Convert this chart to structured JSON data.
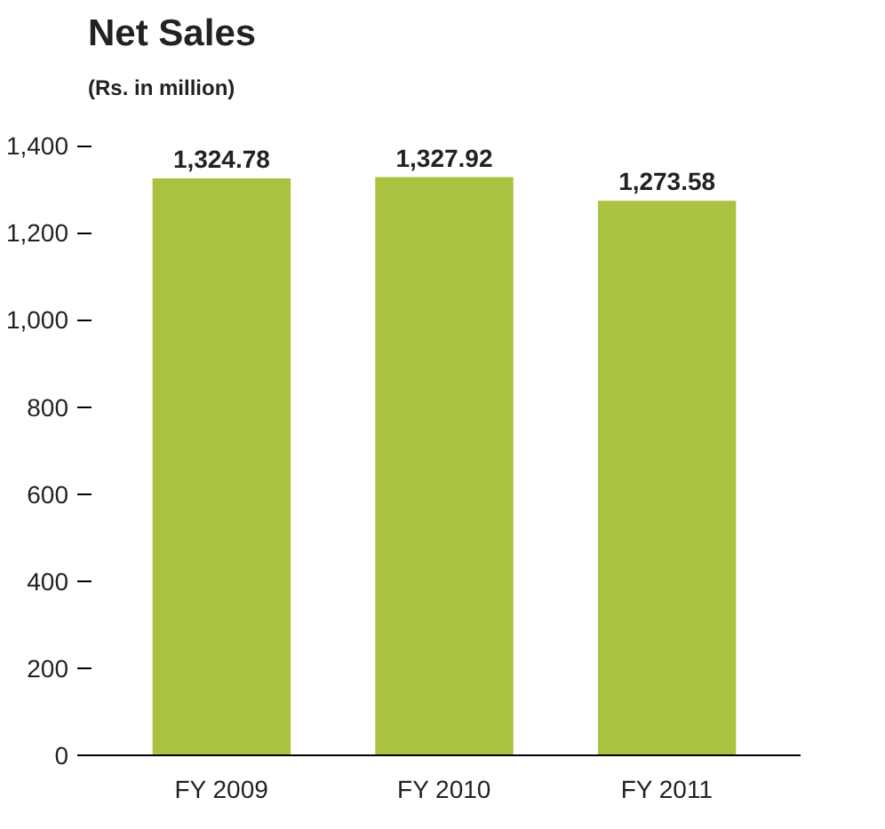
{
  "chart_data": {
    "type": "bar",
    "title": "Net Sales",
    "subtitle": "(Rs. in million)",
    "categories": [
      "FY 2009",
      "FY 2010",
      "FY 2011"
    ],
    "values": [
      1324.78,
      1327.92,
      1273.58
    ],
    "value_labels": [
      "1,324.78",
      "1,327.92",
      "1,273.58"
    ],
    "color": "#a9c23f",
    "ylim": [
      0,
      1400
    ],
    "yticks": [
      0,
      {
        "value": 200,
        "label": "200"
      },
      {
        "value": 400,
        "label": "400"
      },
      {
        "value": 600,
        "label": "600"
      },
      {
        "value": 800,
        "label": "800"
      },
      {
        "value": 1000,
        "label": "1,000"
      },
      {
        "value": 1200,
        "label": "1,200"
      },
      {
        "value": 1400,
        "label": "1,400"
      }
    ],
    "grid": false
  }
}
